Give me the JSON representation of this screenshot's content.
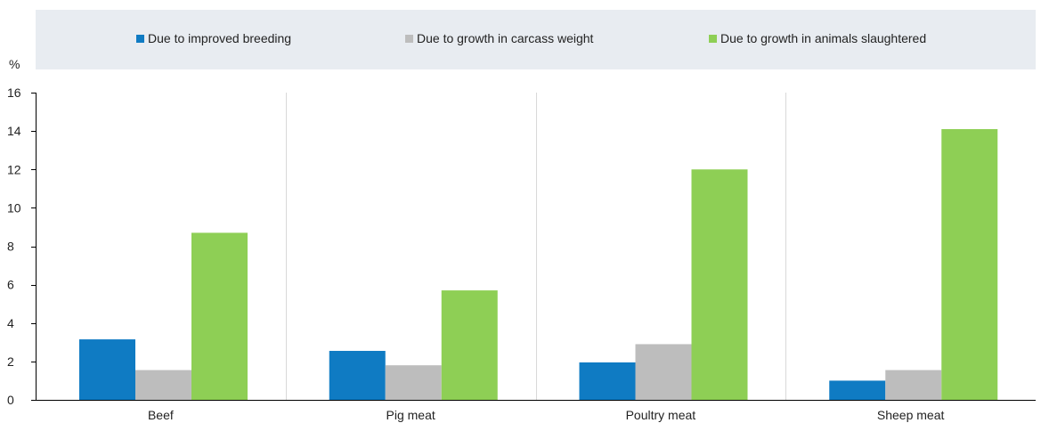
{
  "chart_data": {
    "type": "bar",
    "ylabel": "%",
    "ylim": [
      0,
      16
    ],
    "yticks": [
      0,
      2,
      4,
      6,
      8,
      10,
      12,
      14,
      16
    ],
    "categories": [
      "Beef",
      "Pig meat",
      "Poultry meat",
      "Sheep meat"
    ],
    "series": [
      {
        "name": "Due to improved breeding",
        "color": "#0f7bc3",
        "values": [
          3.15,
          2.55,
          1.95,
          1.0
        ]
      },
      {
        "name": "Due to growth in carcass weight",
        "color": "#bdbdbd",
        "values": [
          1.55,
          1.8,
          2.9,
          1.55
        ]
      },
      {
        "name": "Due to growth in animals slaughtered",
        "color": "#8ecf55",
        "values": [
          8.7,
          5.7,
          12.0,
          14.1
        ]
      }
    ],
    "grid": "vertical separators between categories",
    "legend": "top"
  }
}
